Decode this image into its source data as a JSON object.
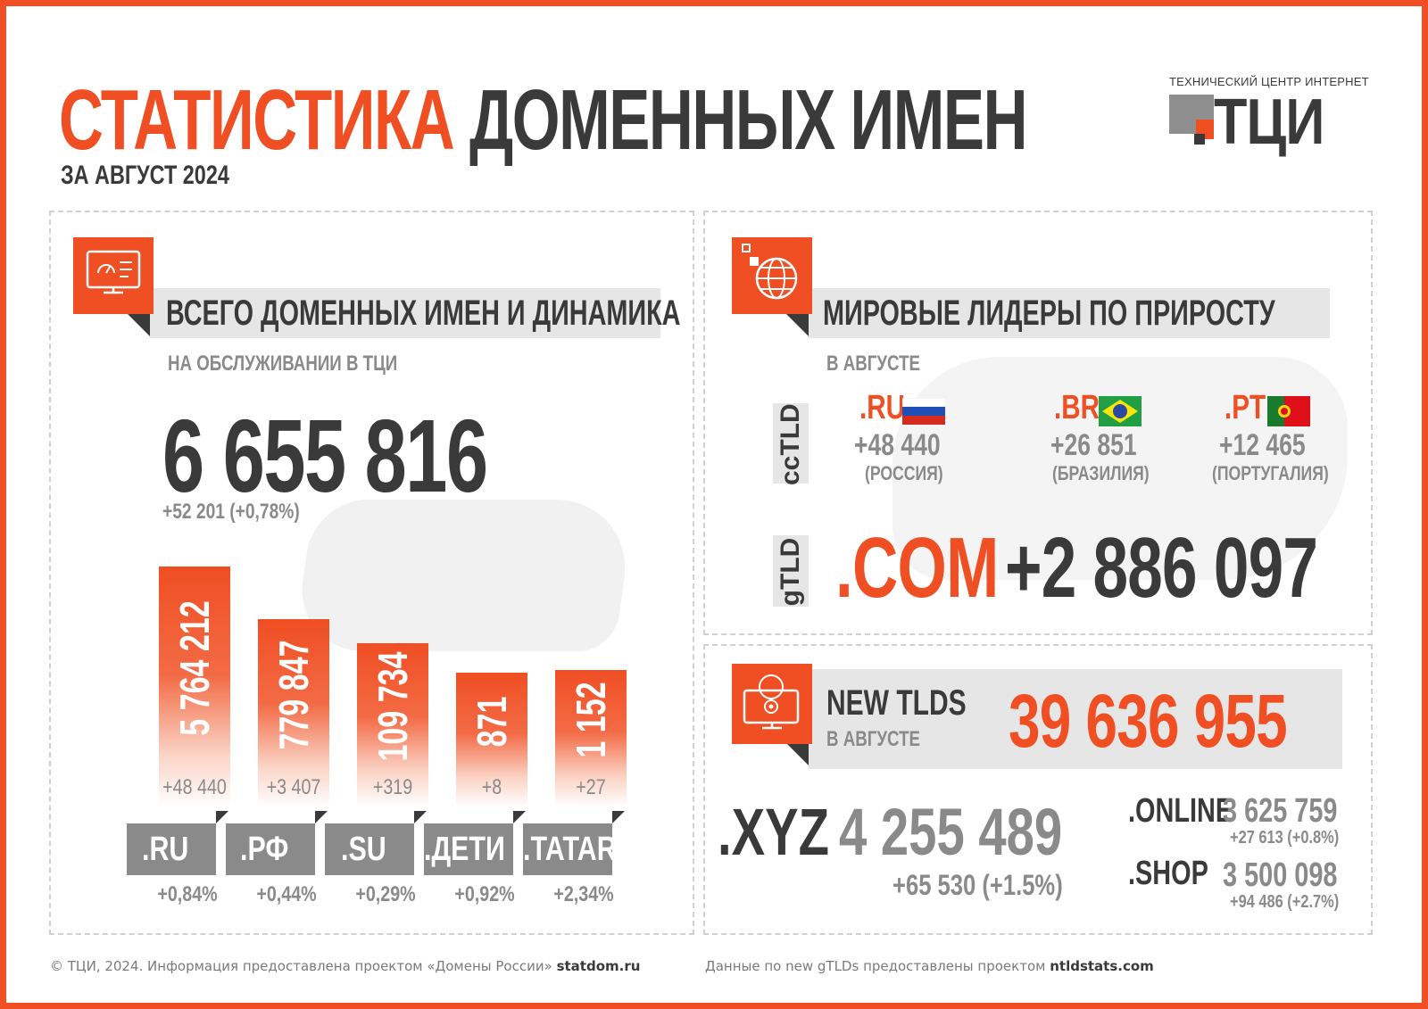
{
  "header": {
    "title_orange": "СТАТИСТИКА",
    "title_dark": "ДОМЕННЫХ ИМЕН",
    "subtitle": "ЗА АВГУСТ 2024"
  },
  "logo": {
    "caption": "ТЕХНИЧЕСКИЙ ЦЕНТР ИНТЕРНЕТ",
    "text": "ТЦИ"
  },
  "left_panel": {
    "icon": "monitor-dashboard-icon",
    "heading": "ВСЕГО ДОМЕННЫХ ИМЕН И ДИНАМИКА",
    "caption": "НА ОБСЛУЖИВАНИИ В ТЦИ",
    "total": "6 655 816",
    "total_delta": "+52 201 (+0,78%)"
  },
  "chart_data": {
    "type": "bar",
    "categories": [
      ".RU",
      ".РФ",
      ".SU",
      ".ДЕТИ",
      ".TATAR"
    ],
    "values": [
      5764212,
      779847,
      109734,
      871,
      1152
    ],
    "value_labels": [
      "5 764 212",
      "779 847",
      "109 734",
      "871",
      "1 152"
    ],
    "delta_labels": [
      "+48 440",
      "+3 407",
      "+319",
      "+8",
      "+27"
    ],
    "pct_labels": [
      "+0,84%",
      "+0,44%",
      "+0,29%",
      "+0,92%",
      "+2,34%"
    ],
    "bar_levels": [
      1.0,
      0.78,
      0.68,
      0.56,
      0.57
    ],
    "title": "",
    "xlabel": "",
    "ylabel": ""
  },
  "leaders_panel": {
    "icon": "globe-network-icon",
    "heading": "МИРОВЫЕ ЛИДЕРЫ ПО ПРИРОСТУ",
    "caption": "В АВГУСТЕ",
    "cctld_label": "ccTLD",
    "gtld_label": "gTLD",
    "cctld": [
      {
        "tld": ".RU",
        "value": "+48 440",
        "country": "(РОССИЯ)",
        "flag": "russia-flag-icon"
      },
      {
        "tld": ".BR",
        "value": "+26 851",
        "country": "(БРАЗИЛИЯ)",
        "flag": "brazil-flag-icon"
      },
      {
        "tld": ".PT",
        "value": "+12 465",
        "country": "(ПОРТУГАЛИЯ)",
        "flag": "portugal-flag-icon"
      }
    ],
    "gtld": {
      "tld": ".COM",
      "value": "+2 886 097"
    }
  },
  "newtlds_panel": {
    "icon": "globe-gear-monitor-icon",
    "label": "NEW TLDS",
    "caption": "В АВГУСТЕ",
    "total": "39 636 955",
    "main": {
      "tld": ".XYZ",
      "value": "4 255 489",
      "delta": "+65 530 (+1.5%)"
    },
    "others": [
      {
        "tld": ".ONLINE",
        "value": "3 625 759",
        "delta": "+27 613 (+0.8%)"
      },
      {
        "tld": ".SHOP",
        "value": "3 500 098",
        "delta": "+94 486 (+2.7%)"
      }
    ]
  },
  "footer": {
    "left_prefix": "© ТЦИ, 2024.  Информация предоставлена проектом «Домены России»",
    "left_link": "statdom.ru",
    "right_prefix": "Данные по new gTLDs предоставлены проектом",
    "right_link": "ntldstats.com"
  },
  "colors": {
    "accent": "#f04e23",
    "dark": "#3a3a3a",
    "grey": "#8a8a8a",
    "band": "#e6e6e6"
  }
}
